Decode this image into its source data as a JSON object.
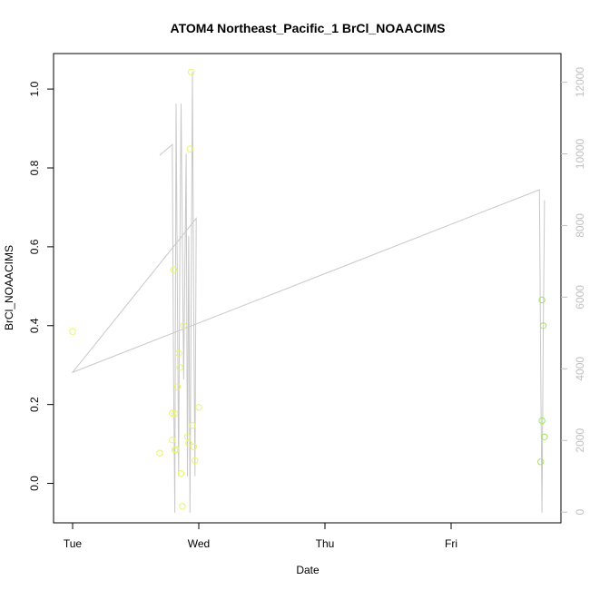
{
  "chart_data": {
    "type": "scatter",
    "title": "ATOM4 Northeast_Pacific_1 BrCl_NOAACIMS",
    "xlabel": "Date",
    "ylabel": "BrCl_NOAACIMS",
    "x_ticks": [
      {
        "label": "Tue",
        "day": 0
      },
      {
        "label": "Wed",
        "day": 1
      },
      {
        "label": "Thu",
        "day": 2
      },
      {
        "label": "Fri",
        "day": 3
      }
    ],
    "xlim_days": [
      0,
      3.75
    ],
    "ylim": [
      -0.1,
      1.09
    ],
    "y_ticks": [
      0.0,
      0.2,
      0.4,
      0.6,
      0.8,
      1.0
    ],
    "y2lim": [
      -300,
      12800
    ],
    "y2_ticks": [
      0,
      2000,
      4000,
      6000,
      8000,
      10000,
      12000
    ],
    "colors": {
      "line": "#c8c8c8",
      "point_early": "#e8f56a",
      "point_late": "#a8e26a",
      "axis": "#000000",
      "axis_right": "#c0c0c0"
    },
    "series": [
      {
        "type": "scatter",
        "points": [
          {
            "day": 0.0,
            "y": 0.385
          },
          {
            "day": 0.69,
            "y": 0.077
          },
          {
            "day": 0.79,
            "y": 0.11
          },
          {
            "day": 0.79,
            "y": 0.178
          },
          {
            "day": 0.8,
            "y": 0.542
          },
          {
            "day": 0.81,
            "y": 0.085
          },
          {
            "day": 0.81,
            "y": 0.177
          },
          {
            "day": 0.82,
            "y": 0.086
          },
          {
            "day": 0.83,
            "y": 0.245
          },
          {
            "day": 0.84,
            "y": 0.33
          },
          {
            "day": 0.85,
            "y": 0.294
          },
          {
            "day": 0.86,
            "y": 0.025
          },
          {
            "day": 0.87,
            "y": -0.058
          },
          {
            "day": 0.88,
            "y": 0.4
          },
          {
            "day": 0.91,
            "y": 0.118
          },
          {
            "day": 0.92,
            "y": 0.102
          },
          {
            "day": 0.93,
            "y": 0.848
          },
          {
            "day": 0.94,
            "y": 1.043
          },
          {
            "day": 0.95,
            "y": 0.147
          },
          {
            "day": 0.96,
            "y": 0.093
          },
          {
            "day": 0.97,
            "y": 0.058
          },
          {
            "day": 1.0,
            "y": 0.193
          },
          {
            "day": 3.71,
            "y": 0.055
          },
          {
            "day": 3.72,
            "y": 0.159
          },
          {
            "day": 3.72,
            "y": 0.465
          },
          {
            "day": 3.73,
            "y": 0.4
          },
          {
            "day": 3.74,
            "y": 0.118
          }
        ]
      },
      {
        "type": "line",
        "axis": "right",
        "points": [
          {
            "day": 0.69,
            "y2": 9960
          },
          {
            "day": 0.79,
            "y2": 10260
          },
          {
            "day": 0.8,
            "y2": 4000
          },
          {
            "day": 0.81,
            "y2": -20
          },
          {
            "day": 0.82,
            "y2": 11400
          },
          {
            "day": 0.84,
            "y2": 1000
          },
          {
            "day": 0.85,
            "y2": 7200
          },
          {
            "day": 0.86,
            "y2": 11400
          },
          {
            "day": 0.88,
            "y2": 3700
          },
          {
            "day": 0.9,
            "y2": 10000
          },
          {
            "day": 0.91,
            "y2": 1000
          },
          {
            "day": 0.92,
            "y2": 7700
          },
          {
            "day": 0.93,
            "y2": -20
          },
          {
            "day": 0.95,
            "y2": 12300
          },
          {
            "day": 0.96,
            "y2": 5600
          },
          {
            "day": 0.97,
            "y2": 1000
          },
          {
            "day": 0.98,
            "y2": 8200
          },
          {
            "day": 0.0,
            "y2": 3900
          },
          {
            "day": 3.7,
            "y2": 9000
          },
          {
            "day": 3.71,
            "y2": 4000
          },
          {
            "day": 3.72,
            "y2": -20
          },
          {
            "day": 3.73,
            "y2": 5000
          },
          {
            "day": 3.74,
            "y2": 8700
          }
        ]
      }
    ]
  }
}
